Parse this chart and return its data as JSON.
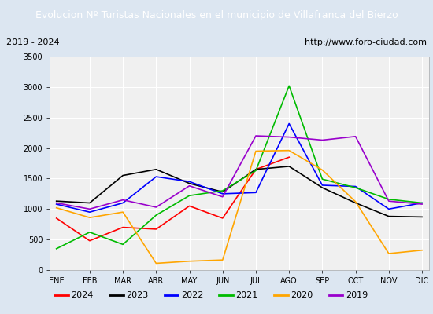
{
  "title": "Evolucion Nº Turistas Nacionales en el municipio de Villafranca del Bierzo",
  "subtitle_left": "2019 - 2024",
  "subtitle_right": "http://www.foro-ciudad.com",
  "months": [
    "ENE",
    "FEB",
    "MAR",
    "ABR",
    "MAY",
    "JUN",
    "JUL",
    "AGO",
    "SEP",
    "OCT",
    "NOV",
    "DIC"
  ],
  "series": {
    "2024": [
      850,
      480,
      700,
      670,
      1050,
      850,
      1650,
      1850,
      null,
      null,
      null,
      null
    ],
    "2023": [
      1130,
      1100,
      1550,
      1650,
      1420,
      1280,
      1650,
      1700,
      1350,
      1100,
      880,
      870
    ],
    "2022": [
      1080,
      950,
      1100,
      1530,
      1450,
      1250,
      1270,
      2400,
      1390,
      1370,
      1000,
      1100
    ],
    "2021": [
      350,
      620,
      420,
      900,
      1220,
      1300,
      1630,
      3020,
      1490,
      1350,
      1160,
      1100
    ],
    "2020": [
      1020,
      860,
      950,
      110,
      145,
      165,
      1950,
      1960,
      1640,
      1120,
      270,
      325
    ],
    "2019": [
      1100,
      1000,
      1150,
      1030,
      1380,
      1200,
      2200,
      2180,
      2130,
      2190,
      1130,
      1080
    ]
  },
  "colors": {
    "2024": "#ff0000",
    "2023": "#000000",
    "2022": "#0000ff",
    "2021": "#00bb00",
    "2020": "#ffa500",
    "2019": "#9900cc"
  },
  "ylim": [
    0,
    3500
  ],
  "yticks": [
    0,
    500,
    1000,
    1500,
    2000,
    2500,
    3000,
    3500
  ],
  "title_bg_color": "#4472c4",
  "title_text_color": "#ffffff",
  "plot_bg_color": "#f0f0f0",
  "outer_bg_color": "#dce6f1",
  "grid_color": "#ffffff",
  "subtitle_box_color": "#ffffff",
  "legend_box_color": "#ffffff"
}
